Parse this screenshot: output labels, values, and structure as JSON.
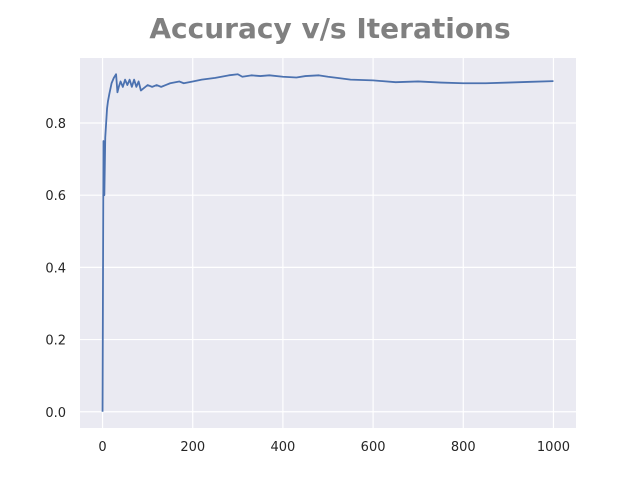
{
  "chart_data": {
    "type": "line",
    "title": "Accuracy v/s Iterations",
    "xlabel": "",
    "ylabel": "",
    "xlim": [
      -50,
      1050
    ],
    "ylim": [
      -0.045,
      0.98
    ],
    "x_ticks": [
      0,
      200,
      400,
      600,
      800,
      1000
    ],
    "x_tick_labels": [
      "0",
      "200",
      "400",
      "600",
      "800",
      "1000"
    ],
    "y_ticks": [
      0.0,
      0.2,
      0.4,
      0.6,
      0.8
    ],
    "y_tick_labels": [
      "0.0",
      "0.2",
      "0.4",
      "0.6",
      "0.8"
    ],
    "grid": true,
    "legend": "none",
    "colors": {
      "plot_background": "#eaeaf2",
      "grid": "#ffffff",
      "line": "#4c72b0",
      "title": "#808080",
      "tick_label": "#262626"
    },
    "series": [
      {
        "x": [
          0,
          2,
          4,
          6,
          8,
          10,
          12,
          15,
          20,
          25,
          30,
          33,
          36,
          40,
          45,
          50,
          55,
          60,
          65,
          70,
          75,
          80,
          85,
          90,
          100,
          110,
          120,
          130,
          140,
          150,
          170,
          180,
          200,
          220,
          250,
          280,
          300,
          310,
          330,
          350,
          370,
          400,
          430,
          450,
          480,
          500,
          520,
          550,
          600,
          650,
          700,
          750,
          800,
          850,
          900,
          950,
          1000
        ],
        "y": [
          0.0,
          0.75,
          0.6,
          0.76,
          0.8,
          0.84,
          0.86,
          0.88,
          0.91,
          0.925,
          0.935,
          0.885,
          0.9,
          0.915,
          0.9,
          0.92,
          0.905,
          0.92,
          0.9,
          0.92,
          0.9,
          0.915,
          0.89,
          0.895,
          0.905,
          0.9,
          0.905,
          0.9,
          0.905,
          0.91,
          0.915,
          0.91,
          0.915,
          0.92,
          0.925,
          0.932,
          0.935,
          0.928,
          0.932,
          0.93,
          0.932,
          0.928,
          0.926,
          0.93,
          0.932,
          0.928,
          0.925,
          0.92,
          0.918,
          0.913,
          0.915,
          0.912,
          0.91,
          0.91,
          0.912,
          0.914,
          0.916
        ]
      }
    ]
  }
}
